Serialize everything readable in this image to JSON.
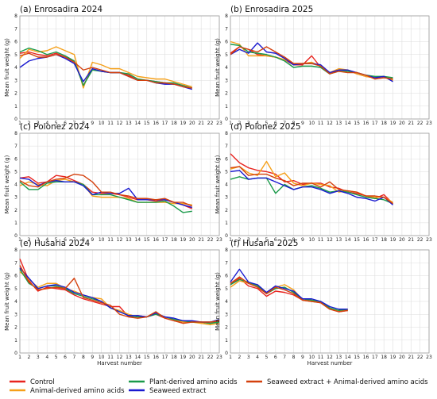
{
  "chart_data": {
    "type": "line",
    "ylabel": "Mean fruit weight (g)",
    "xlabel": "Harvest number",
    "ylim": [
      0,
      8
    ],
    "xlim": [
      1,
      23
    ],
    "yticks": [
      0,
      1,
      2,
      3,
      4,
      5,
      6,
      7,
      8
    ],
    "xticks": [
      1,
      2,
      3,
      4,
      5,
      6,
      7,
      8,
      9,
      10,
      11,
      12,
      13,
      14,
      15,
      16,
      17,
      18,
      19,
      20,
      21,
      22,
      23
    ],
    "grid": true,
    "legend_position": "bottom",
    "legend": [
      {
        "key": "control",
        "name": "Control",
        "color": "#e8231e"
      },
      {
        "key": "animal",
        "name": "Animal-derived amino acids",
        "color": "#f5a01a"
      },
      {
        "key": "plant",
        "name": "Plant-derived amino acids",
        "color": "#1a9a4a"
      },
      {
        "key": "seaweed",
        "name": "Seaweed extract",
        "color": "#1a1ad0"
      },
      {
        "key": "combo",
        "name": "Seaweed extract + Animal-derived amino acids",
        "color": "#d4400d"
      }
    ],
    "panels": [
      {
        "title": "(a) Enrosadira 2024",
        "series": {
          "control": [
            5.1,
            5.2,
            5.0,
            4.9,
            5.1,
            4.8,
            4.5,
            2.6,
            3.9,
            3.7,
            3.6,
            3.6,
            3.4,
            3.0,
            3.0,
            2.9,
            2.8,
            2.7,
            2.6,
            2.4
          ],
          "animal": [
            4.7,
            5.4,
            5.2,
            5.3,
            5.6,
            5.3,
            5.0,
            2.4,
            4.4,
            4.2,
            3.9,
            3.9,
            3.6,
            3.3,
            3.2,
            3.1,
            3.1,
            2.9,
            2.7,
            2.5
          ],
          "plant": [
            5.2,
            5.5,
            5.3,
            5.0,
            5.2,
            4.9,
            4.5,
            2.6,
            3.8,
            3.7,
            3.6,
            3.6,
            3.5,
            3.1,
            3.0,
            2.9,
            2.8,
            2.8,
            2.6,
            2.4
          ],
          "seaweed": [
            4.0,
            4.5,
            4.7,
            4.8,
            5.0,
            4.7,
            4.3,
            2.9,
            3.9,
            3.7,
            3.6,
            3.6,
            3.3,
            3.0,
            3.0,
            2.8,
            2.7,
            2.7,
            2.5,
            2.3
          ],
          "combo": [
            4.9,
            5.1,
            4.8,
            4.8,
            5.0,
            4.8,
            4.4,
            3.8,
            4.0,
            3.8,
            3.6,
            3.6,
            3.3,
            3.0,
            3.0,
            2.8,
            2.8,
            2.7,
            2.5,
            2.4
          ]
        }
      },
      {
        "title": "(b) Enrosadira 2025",
        "series": {
          "control": [
            5.1,
            5.6,
            5.4,
            5.0,
            4.9,
            4.8,
            4.6,
            4.2,
            4.2,
            4.9,
            4.0,
            3.5,
            3.8,
            3.8,
            3.5,
            3.3,
            3.2,
            3.3,
            3.0
          ],
          "animal": [
            6.0,
            5.8,
            4.9,
            4.9,
            4.9,
            4.8,
            4.6,
            4.3,
            4.3,
            4.4,
            4.1,
            3.6,
            3.9,
            3.8,
            3.5,
            3.3,
            3.2,
            3.3,
            3.0
          ],
          "plant": [
            5.8,
            5.7,
            5.2,
            5.1,
            5.0,
            4.8,
            4.5,
            4.0,
            4.1,
            4.1,
            4.0,
            3.5,
            3.7,
            3.7,
            3.6,
            3.4,
            3.3,
            3.3,
            3.2
          ],
          "seaweed": [
            5.0,
            5.4,
            5.1,
            5.9,
            5.2,
            5.1,
            4.7,
            4.2,
            4.3,
            4.3,
            4.2,
            3.6,
            3.8,
            3.8,
            3.6,
            3.4,
            3.2,
            3.3,
            2.9
          ],
          "combo": [
            5.0,
            5.6,
            5.4,
            5.2,
            5.6,
            5.2,
            4.8,
            4.3,
            4.3,
            4.3,
            4.1,
            3.5,
            3.7,
            3.6,
            3.6,
            3.4,
            3.1,
            3.2,
            3.1
          ]
        }
      },
      {
        "title": "(c) Polonez 2024",
        "series": {
          "control": [
            4.5,
            4.6,
            4.1,
            4.2,
            4.7,
            4.6,
            4.3,
            4.0,
            3.4,
            3.3,
            3.3,
            3.2,
            3.0,
            2.8,
            2.8,
            2.7,
            2.8,
            2.6,
            2.4,
            2.1
          ],
          "animal": [
            3.9,
            4.2,
            4.0,
            3.9,
            4.3,
            4.4,
            4.2,
            4.0,
            3.1,
            3.0,
            3.0,
            3.0,
            2.9,
            2.6,
            2.6,
            2.6,
            2.6,
            2.5,
            2.5,
            2.4
          ],
          "plant": [
            4.2,
            3.6,
            3.6,
            4.1,
            4.2,
            4.2,
            4.2,
            4.0,
            3.2,
            3.2,
            3.2,
            3.0,
            2.8,
            2.6,
            2.6,
            2.6,
            2.7,
            2.3,
            1.8,
            1.9
          ],
          "seaweed": [
            4.5,
            4.4,
            3.9,
            4.2,
            4.3,
            4.2,
            4.2,
            3.9,
            3.2,
            3.4,
            3.3,
            3.3,
            3.7,
            2.8,
            2.8,
            2.8,
            2.8,
            2.6,
            2.4,
            2.2
          ],
          "combo": [
            4.3,
            3.9,
            3.8,
            4.2,
            4.4,
            4.5,
            4.8,
            4.7,
            4.2,
            3.4,
            3.4,
            3.2,
            3.1,
            2.9,
            2.9,
            2.8,
            2.9,
            2.6,
            2.6,
            2.3
          ]
        }
      },
      {
        "title": "(d) Polonez 2025",
        "series": {
          "control": [
            6.4,
            5.7,
            5.3,
            5.1,
            5.0,
            4.8,
            4.2,
            4.3,
            4.0,
            4.1,
            4.1,
            3.8,
            3.7,
            3.4,
            3.3,
            3.1,
            2.9,
            3.2,
            2.5
          ],
          "animal": [
            5.2,
            5.4,
            4.9,
            4.7,
            5.8,
            4.6,
            4.9,
            4.1,
            3.9,
            4.1,
            4.0,
            3.9,
            3.4,
            3.5,
            3.4,
            3.1,
            3.0,
            3.0,
            2.6
          ],
          "plant": [
            4.4,
            4.6,
            4.4,
            4.5,
            4.5,
            3.3,
            4.0,
            3.6,
            3.8,
            3.9,
            3.7,
            3.4,
            3.5,
            3.4,
            3.2,
            3.0,
            2.9,
            2.8,
            2.5
          ],
          "seaweed": [
            5.0,
            5.1,
            4.4,
            4.5,
            4.5,
            4.2,
            3.9,
            3.6,
            3.8,
            3.8,
            3.6,
            3.3,
            3.5,
            3.3,
            3.0,
            2.9,
            2.7,
            3.0,
            2.4
          ],
          "combo": [
            5.3,
            5.4,
            4.7,
            4.8,
            4.8,
            4.5,
            4.3,
            3.9,
            4.1,
            4.1,
            3.8,
            4.2,
            3.6,
            3.5,
            3.4,
            3.1,
            3.1,
            3.0,
            2.5
          ]
        }
      },
      {
        "title": "(e) Husaria 2024",
        "series": {
          "control": [
            7.3,
            5.6,
            4.8,
            5.1,
            5.0,
            4.9,
            4.5,
            4.2,
            4.0,
            3.8,
            3.6,
            3.6,
            2.8,
            2.9,
            2.8,
            3.0,
            2.7,
            2.5,
            2.4,
            2.4,
            2.4,
            2.3,
            2.5
          ],
          "animal": [
            6.3,
            5.7,
            5.1,
            5.4,
            5.4,
            5.0,
            4.8,
            4.5,
            4.3,
            4.2,
            3.5,
            3.3,
            3.0,
            2.8,
            2.8,
            3.1,
            2.8,
            2.6,
            2.4,
            2.4,
            2.3,
            2.2,
            2.3
          ],
          "plant": [
            6.5,
            5.4,
            5.0,
            5.2,
            5.2,
            5.0,
            4.6,
            4.4,
            4.2,
            4.0,
            3.5,
            3.2,
            2.9,
            2.8,
            2.8,
            3.0,
            2.8,
            2.6,
            2.5,
            2.4,
            2.4,
            2.3,
            2.4
          ],
          "seaweed": [
            6.6,
            5.8,
            5.0,
            5.2,
            5.3,
            5.1,
            4.7,
            4.5,
            4.3,
            4.0,
            3.5,
            3.2,
            2.9,
            2.9,
            2.8,
            3.1,
            2.8,
            2.7,
            2.5,
            2.5,
            2.4,
            2.4,
            2.6
          ],
          "combo": [
            6.8,
            5.5,
            4.9,
            5.0,
            5.1,
            5.0,
            5.8,
            4.3,
            4.1,
            3.9,
            3.7,
            3.0,
            2.8,
            2.7,
            2.8,
            3.2,
            2.7,
            2.5,
            2.3,
            2.4,
            2.4,
            2.4,
            2.5
          ]
        }
      },
      {
        "title": "(f) Husaria 2025",
        "series": {
          "control": [
            5.3,
            5.8,
            5.2,
            5.0,
            4.4,
            4.8,
            4.7,
            4.5,
            4.1,
            4.0,
            3.9,
            3.4,
            3.2,
            3.3
          ],
          "animal": [
            5.1,
            5.6,
            5.4,
            5.3,
            4.6,
            5.1,
            5.3,
            4.9,
            4.1,
            4.0,
            4.0,
            3.4,
            3.3,
            3.3
          ],
          "plant": [
            5.3,
            5.7,
            5.5,
            5.2,
            4.6,
            5.0,
            5.1,
            4.7,
            4.2,
            4.1,
            4.0,
            3.5,
            3.3,
            3.4
          ],
          "seaweed": [
            5.5,
            6.5,
            5.5,
            5.3,
            4.7,
            5.2,
            5.0,
            4.8,
            4.2,
            4.2,
            4.0,
            3.6,
            3.4,
            3.4
          ],
          "combo": [
            5.4,
            5.9,
            5.4,
            5.1,
            4.6,
            5.1,
            4.9,
            4.6,
            4.1,
            4.0,
            3.9,
            3.4,
            3.2,
            3.3
          ]
        }
      }
    ]
  }
}
